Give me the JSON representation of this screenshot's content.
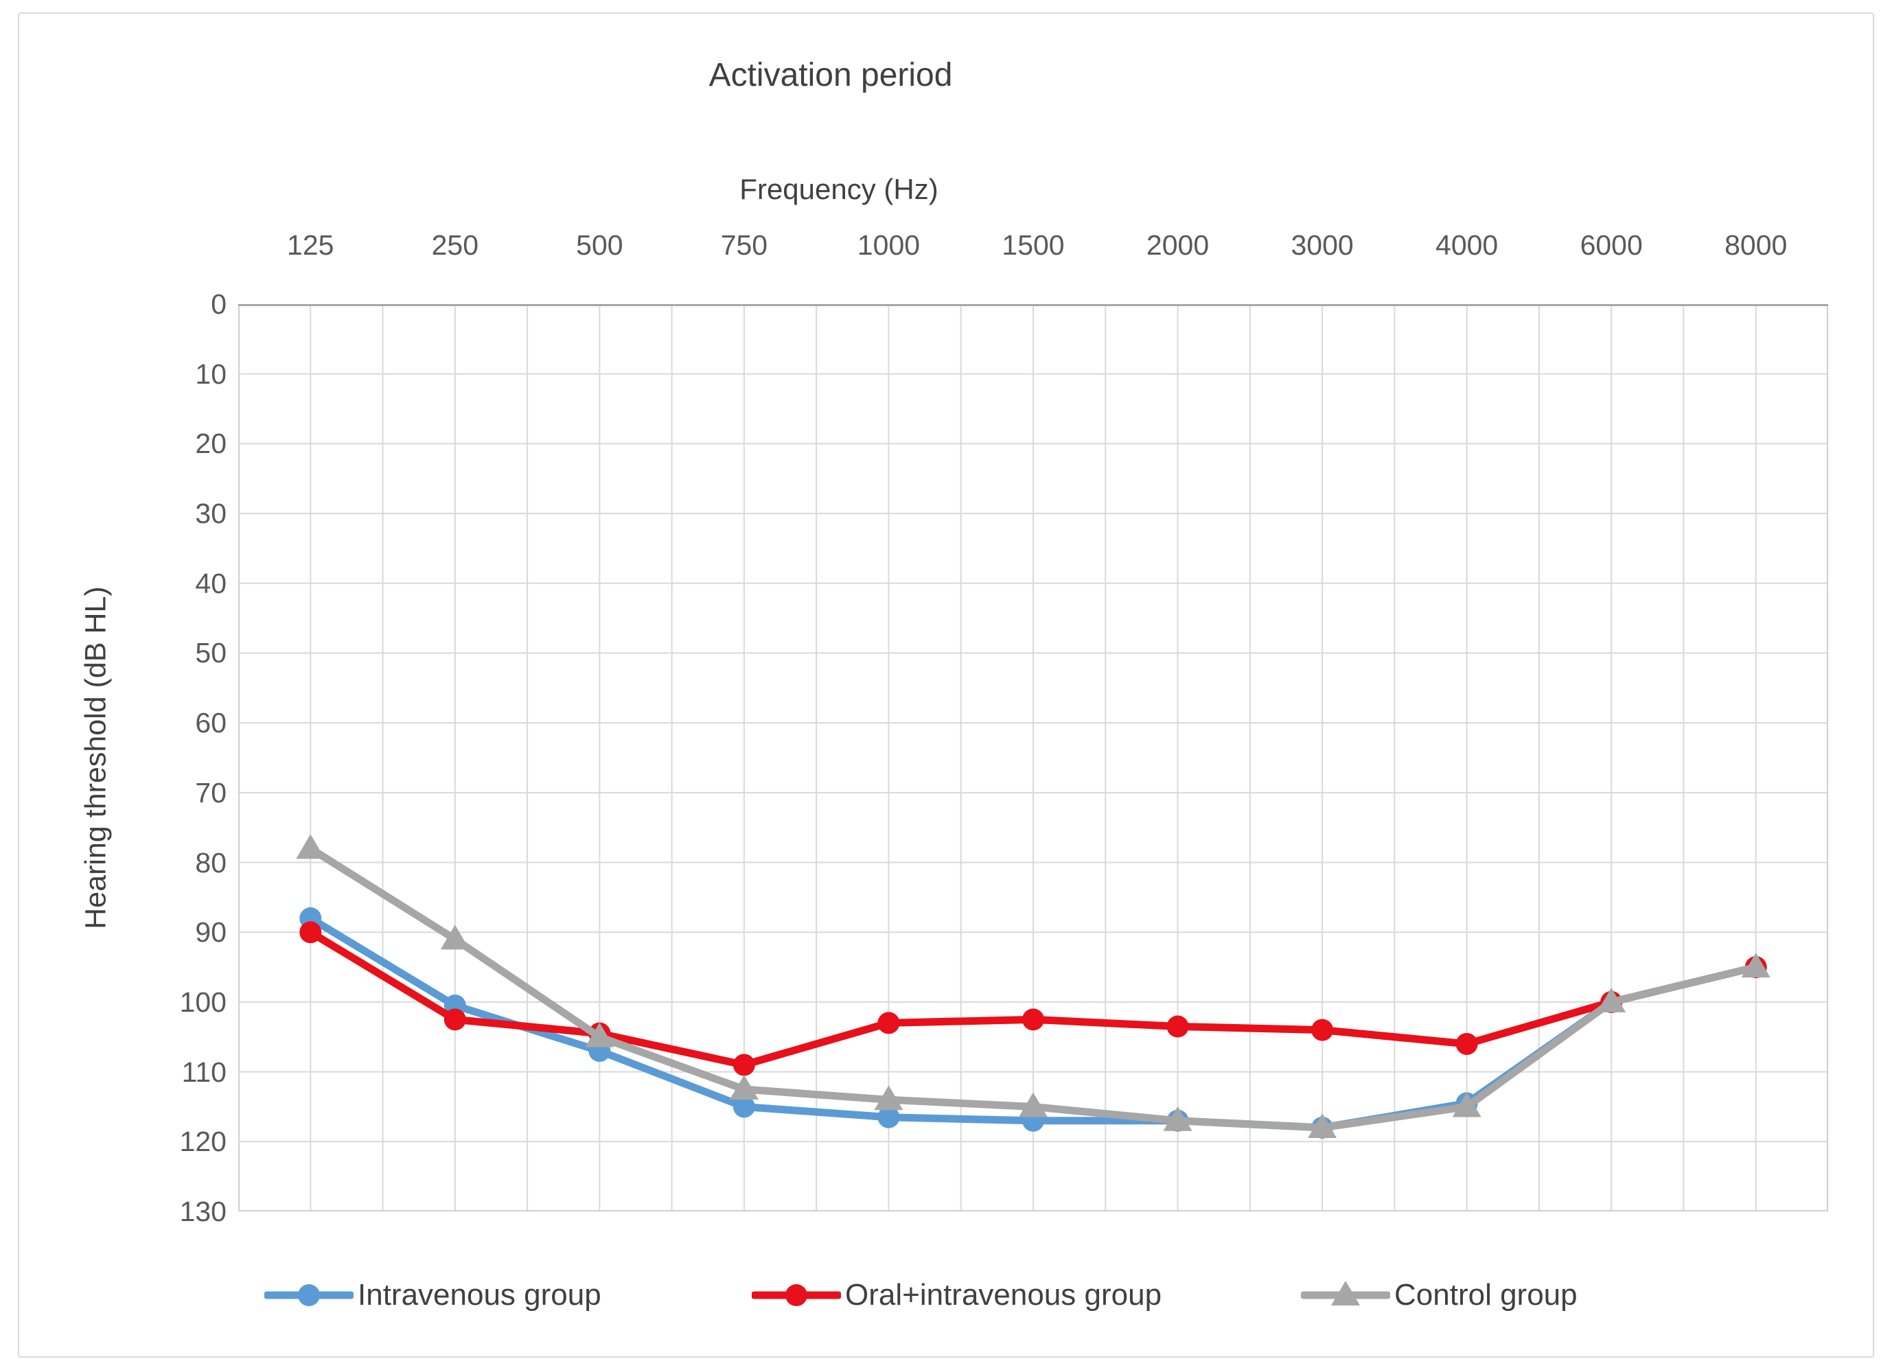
{
  "title": "Activation period",
  "x_axis": {
    "label": "Frequency (Hz)"
  },
  "y_axis": {
    "label": "Hearing threshold (dB HL)",
    "min": 0,
    "max": 130,
    "step": 10
  },
  "colors": {
    "grid": "#d9d9d9",
    "plot_border": "#cfcfcf",
    "top_axis_line": "#a6a6a6",
    "tick_text": "#595959",
    "title_text": "#404040"
  },
  "chart_data": {
    "type": "line",
    "title": "Activation period",
    "xlabel": "Frequency (Hz)",
    "ylabel": "Hearing threshold (dB HL)",
    "categories": [
      125,
      250,
      500,
      750,
      1000,
      1500,
      2000,
      3000,
      4000,
      6000,
      8000
    ],
    "ylim": [
      0,
      130
    ],
    "ytick_step": 10,
    "y_axis_inverted": true,
    "x_axis_position": "top",
    "grid": true,
    "legend_position": "bottom",
    "series": [
      {
        "name": "Intravenous group",
        "color": "#5B9BD5",
        "marker": "circle",
        "values": [
          88,
          100.5,
          107,
          115,
          116.5,
          117,
          117,
          118,
          114.5,
          100,
          null
        ]
      },
      {
        "name": "Oral+intravenous group",
        "color": "#E8101A",
        "marker": "circle",
        "values": [
          90,
          102.5,
          104.5,
          109,
          103,
          102.5,
          103.5,
          104,
          106,
          100,
          95
        ]
      },
      {
        "name": "Control group",
        "color": "#A6A6A6",
        "marker": "triangle",
        "values": [
          78,
          91,
          105,
          112.5,
          114,
          115,
          117,
          118,
          115,
          100,
          95
        ]
      }
    ]
  }
}
